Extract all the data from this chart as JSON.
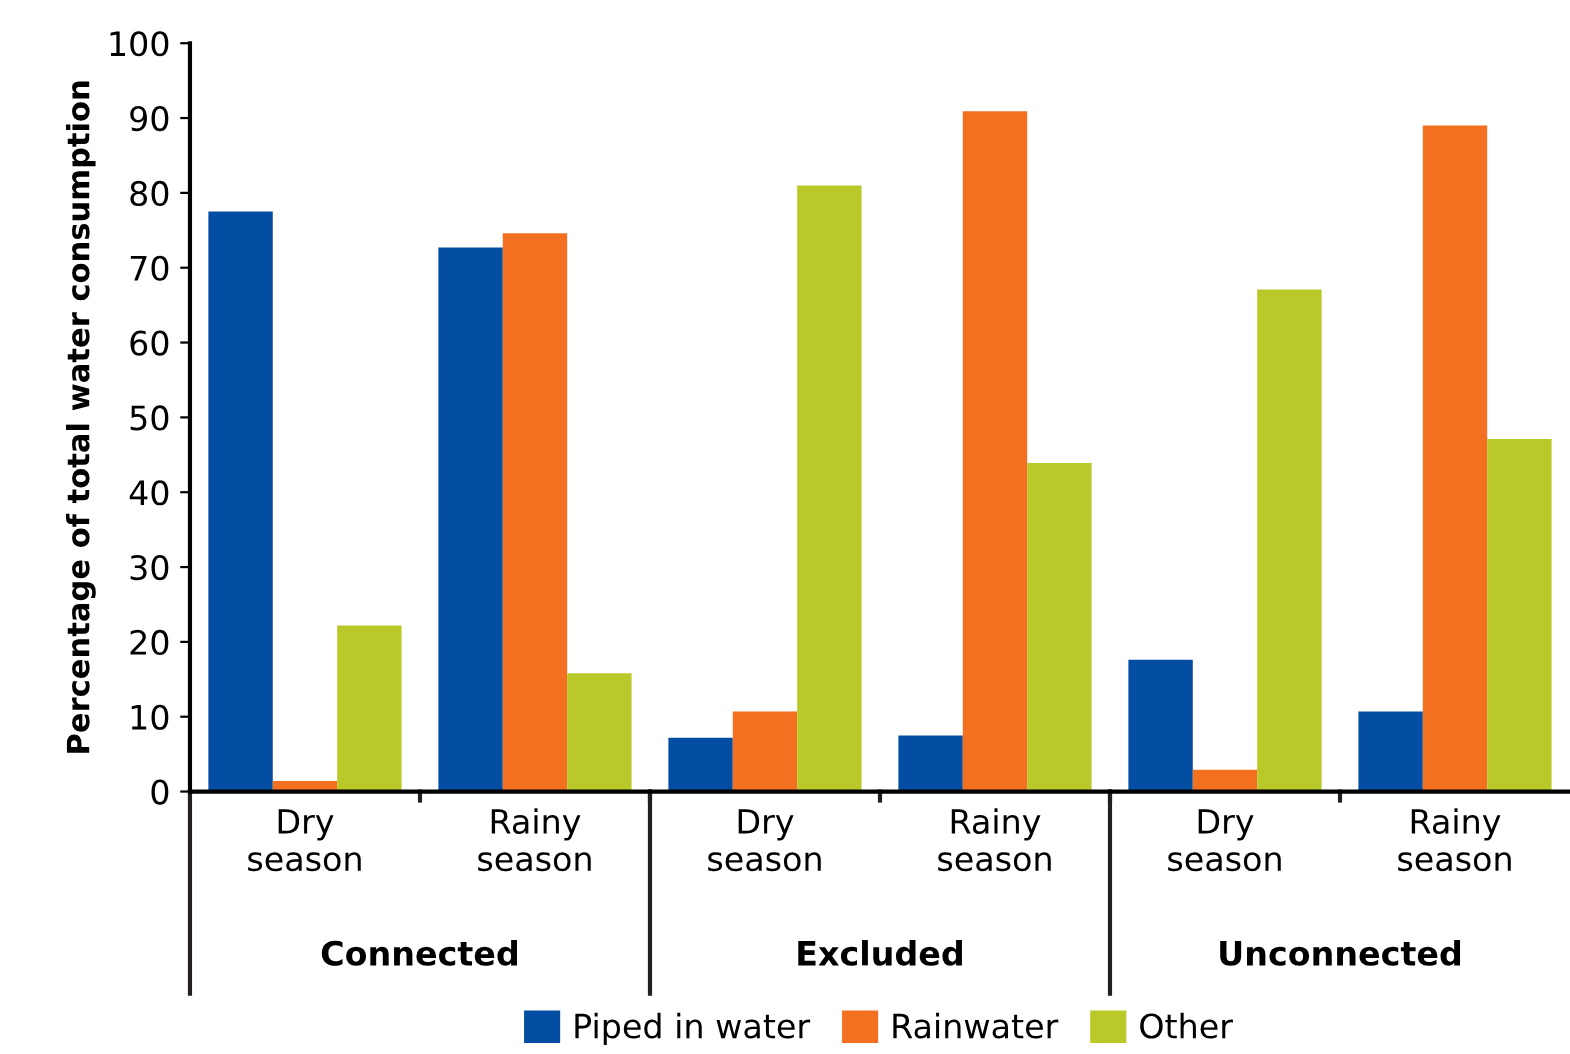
{
  "chart_data": {
    "type": "bar",
    "ylabel": "Percentage of total water consumption",
    "categories": [
      "Dry season",
      "Rainy season",
      "Dry season",
      "Rainy season",
      "Dry season",
      "Rainy season"
    ],
    "series": [
      {
        "name": "Piped in water",
        "color": "#034ea2",
        "values": [
          77.5,
          72.7,
          7.2,
          7.5,
          17.6,
          10.7
        ]
      },
      {
        "name": "Rainwater",
        "color": "#f37021",
        "values": [
          1.4,
          74.6,
          10.7,
          90.9,
          2.9,
          89.0
        ]
      },
      {
        "name": "Other",
        "color": "#b9c929",
        "values": [
          22.2,
          15.8,
          81.0,
          43.9,
          67.1,
          47.1
        ]
      }
    ],
    "annotations": [
      "Connected",
      "Excluded",
      "Unconnected"
    ],
    "ylim": [
      0,
      100
    ],
    "yticks": [
      0,
      10,
      20,
      30,
      40,
      50,
      60,
      70,
      80,
      90,
      100
    ],
    "grid": false,
    "legend": "bottom"
  }
}
